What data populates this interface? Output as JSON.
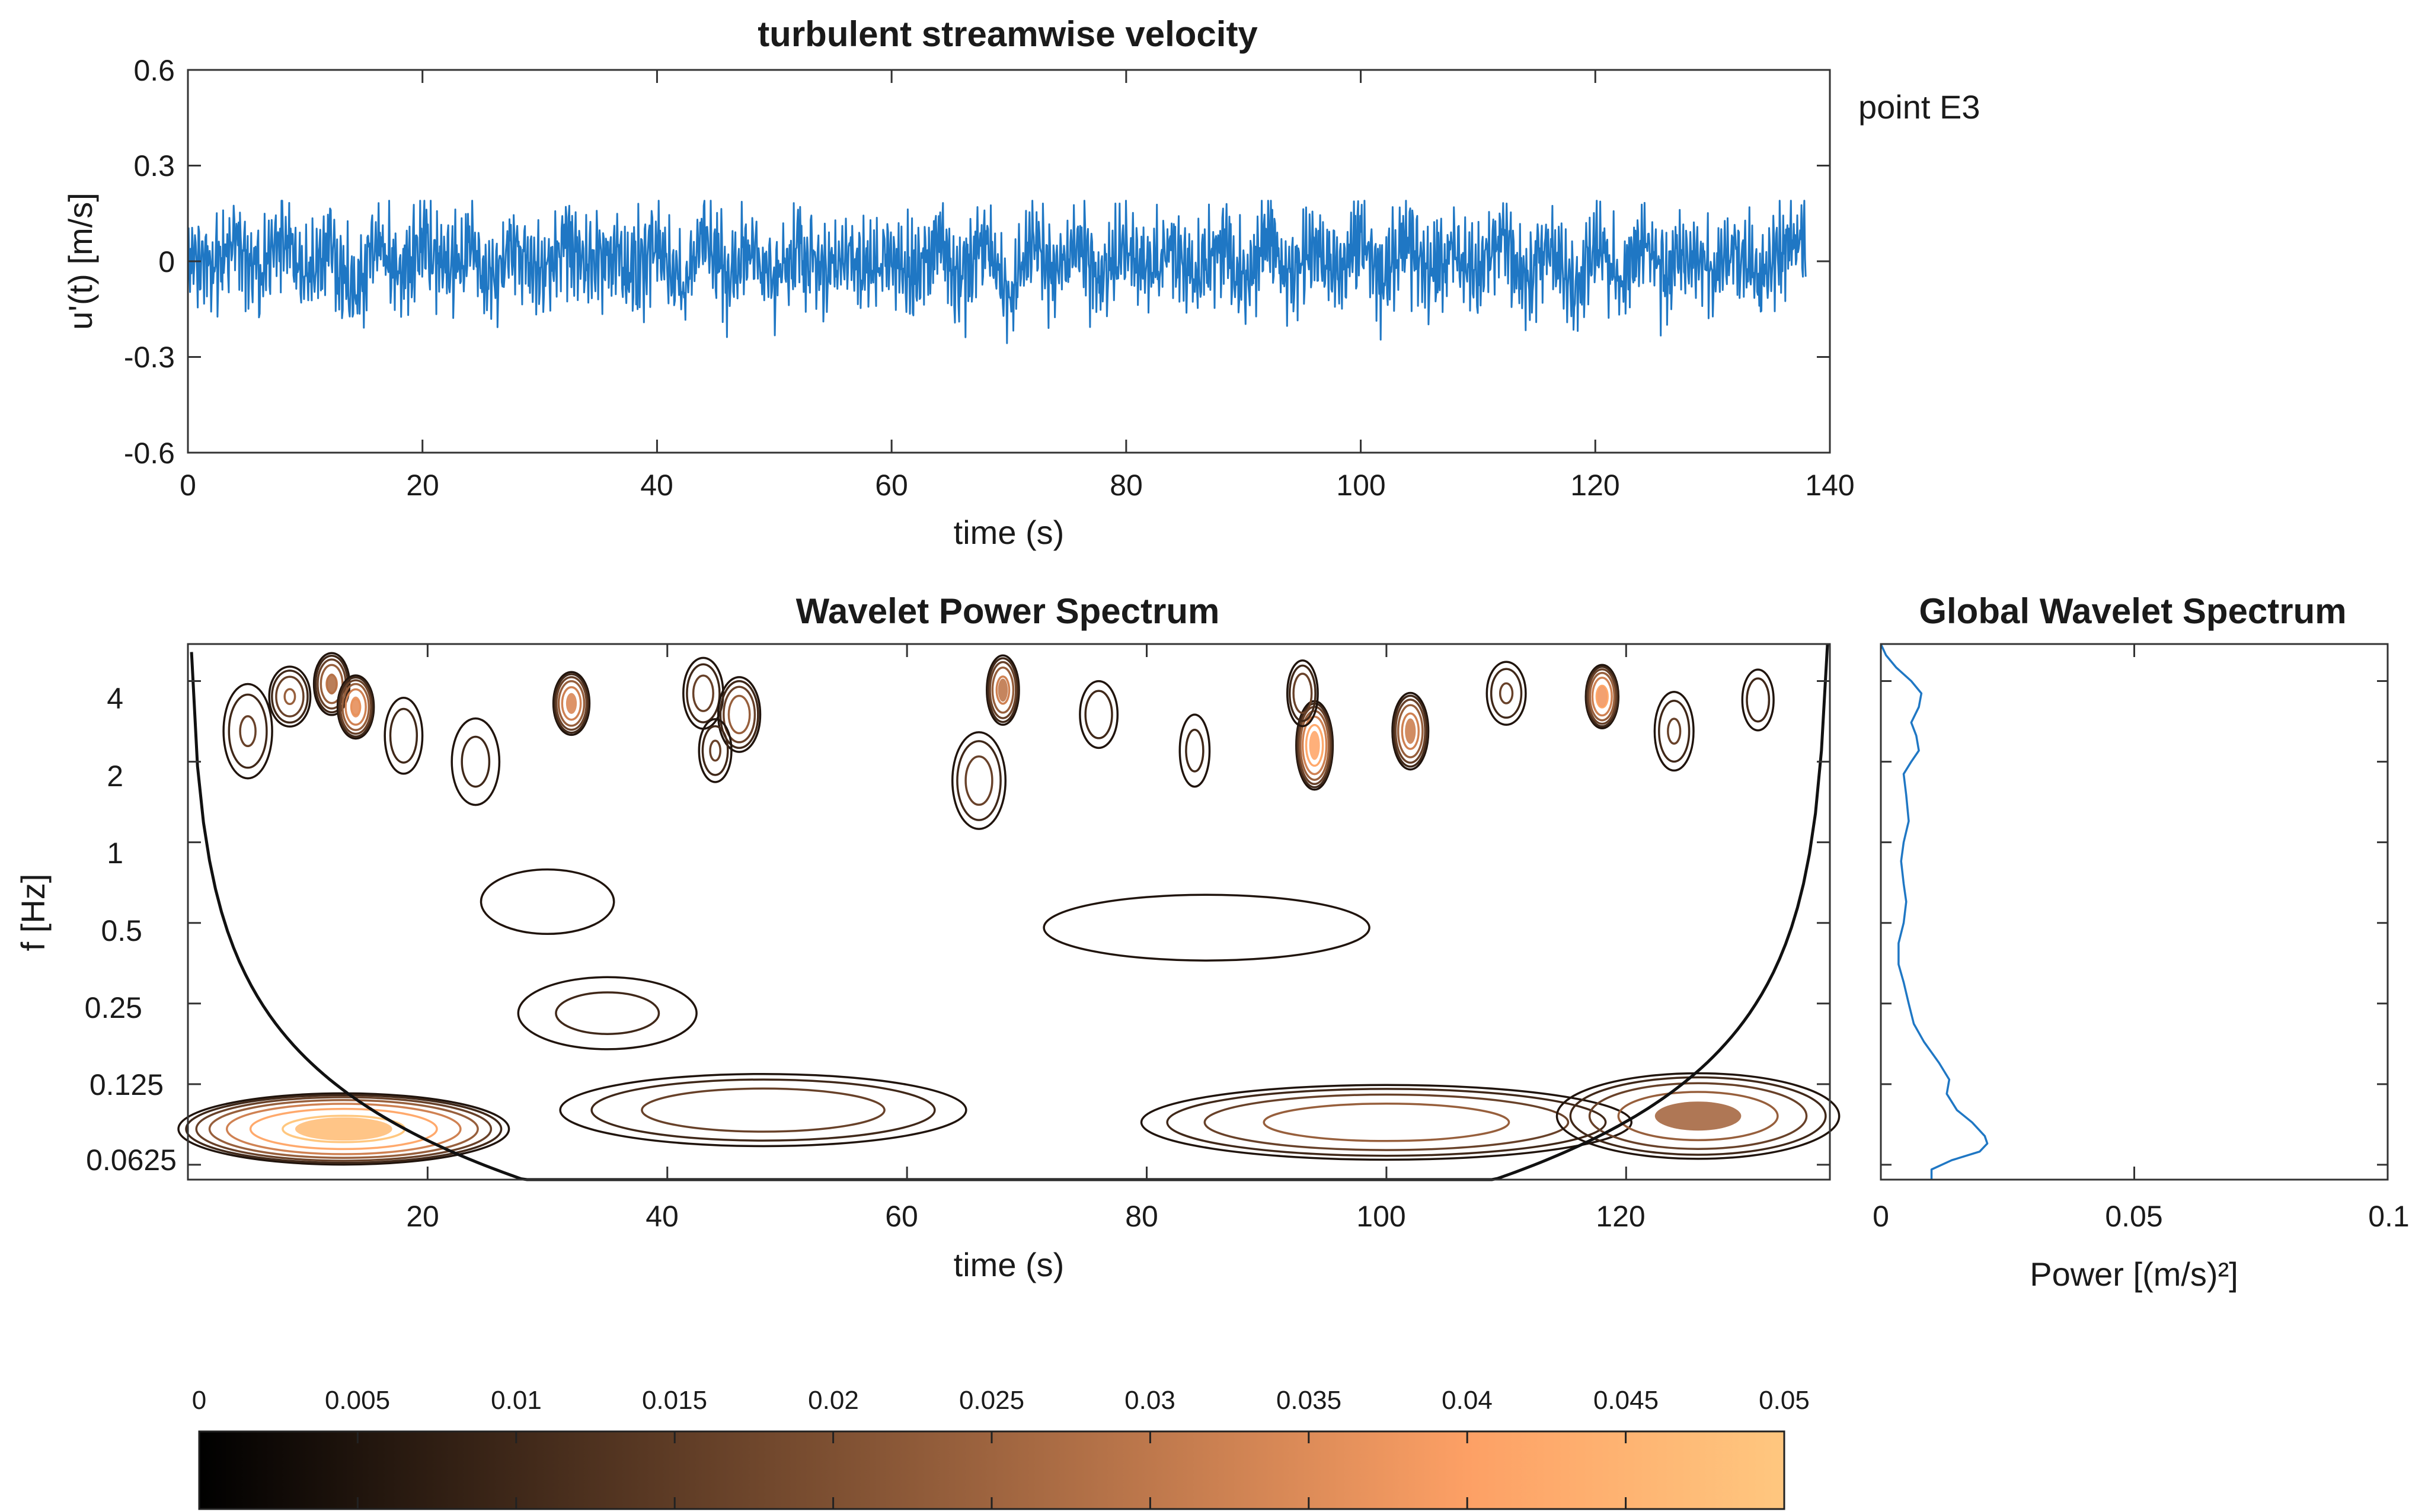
{
  "annotation": "point E3",
  "chart_data": [
    {
      "type": "line",
      "title": "turbulent streamwise velocity",
      "xlabel": "time (s)",
      "ylabel": "u'(t) [m/s]",
      "xlim": [
        0,
        140
      ],
      "ylim": [
        -0.6,
        0.6
      ],
      "xticks": [
        "0",
        "20",
        "40",
        "60",
        "80",
        "100",
        "120",
        "140"
      ],
      "yticks": [
        "0.6",
        "0.3",
        "0",
        "-0.3",
        "-0.6"
      ],
      "grid": false,
      "color": "#1f77c4",
      "series": [
        {
          "x": [
            0,
            2,
            4,
            6,
            8,
            10,
            12,
            14,
            16,
            18,
            20,
            22,
            24,
            26,
            28,
            30,
            32,
            34,
            36,
            38,
            40,
            42,
            44,
            46,
            48,
            50,
            52,
            54,
            56,
            58,
            60,
            62,
            64,
            66,
            68,
            70,
            72,
            74,
            76,
            78,
            80,
            82,
            84,
            86,
            88,
            90,
            92,
            94,
            96,
            98,
            100,
            102,
            104,
            106,
            108,
            110,
            112,
            114,
            116,
            118,
            120,
            122,
            124,
            126,
            128,
            130,
            132,
            134,
            136,
            138
          ],
          "y": [
            0.02,
            -0.05,
            0.12,
            -0.08,
            0.16,
            -0.12,
            0.1,
            -0.18,
            0.08,
            -0.1,
            0.12,
            -0.06,
            0.08,
            -0.1,
            0.06,
            -0.08,
            0.12,
            -0.04,
            0.05,
            -0.07,
            0.1,
            -0.14,
            0.12,
            -0.08,
            0.1,
            -0.12,
            0.08,
            -0.05,
            0.03,
            -0.04,
            0.0,
            -0.08,
            0.1,
            -0.12,
            0.14,
            -0.22,
            0.1,
            -0.06,
            0.08,
            -0.1,
            0.1,
            -0.08,
            0.07,
            -0.06,
            0.1,
            -0.12,
            0.12,
            -0.08,
            0.06,
            -0.08,
            0.1,
            -0.1,
            0.12,
            -0.08,
            0.08,
            -0.1,
            0.14,
            -0.12,
            0.1,
            -0.18,
            0.12,
            -0.1,
            0.1,
            -0.08,
            0.06,
            -0.05,
            0.08,
            -0.1,
            0.1,
            0.12
          ]
        }
      ]
    },
    {
      "type": "heatmap",
      "title": "Wavelet Power Spectrum",
      "xlabel": "time (s)",
      "ylabel": "f [Hz]",
      "xlim": [
        0,
        137
      ],
      "ylim": [
        0.055,
        5.5
      ],
      "yscale": "log",
      "xticks": [
        "20",
        "40",
        "60",
        "80",
        "100",
        "120"
      ],
      "yticks": [
        "4",
        "2",
        "1",
        "0.5",
        "0.25",
        "0.125",
        "0.0625"
      ],
      "style": "contour lines colored by power, black cone of influence",
      "colormap": "copper",
      "colorbar": {
        "range": [
          0,
          0.05
        ],
        "placement": "bottom",
        "ticks": [
          "0",
          "0.005",
          "0.01",
          "0.015",
          "0.02",
          "0.025",
          "0.03",
          "0.035",
          "0.04",
          "0.045",
          "0.05"
        ]
      },
      "blobs": [
        {
          "t": 5,
          "f": 2.6,
          "w": 1.5,
          "h": 0.3,
          "p": 0.014
        },
        {
          "t": 8.5,
          "f": 3.5,
          "w": 1.2,
          "h": 0.18,
          "p": 0.02
        },
        {
          "t": 12,
          "f": 3.9,
          "w": 1.0,
          "h": 0.18,
          "p": 0.028
        },
        {
          "t": 14,
          "f": 3.2,
          "w": 1.0,
          "h": 0.18,
          "p": 0.036
        },
        {
          "t": 18,
          "f": 2.5,
          "w": 1.2,
          "h": 0.25,
          "p": 0.012
        },
        {
          "t": 24,
          "f": 2.0,
          "w": 1.6,
          "h": 0.3,
          "p": 0.01
        },
        {
          "t": 32,
          "f": 3.3,
          "w": 1.0,
          "h": 0.18,
          "p": 0.034
        },
        {
          "t": 43,
          "f": 3.6,
          "w": 1.2,
          "h": 0.22,
          "p": 0.016
        },
        {
          "t": 46,
          "f": 3.0,
          "w": 1.2,
          "h": 0.22,
          "p": 0.024
        },
        {
          "t": 44,
          "f": 2.2,
          "w": 1.0,
          "h": 0.2,
          "p": 0.014
        },
        {
          "t": 66,
          "f": 1.7,
          "w": 1.6,
          "h": 0.3,
          "p": 0.016
        },
        {
          "t": 68,
          "f": 3.7,
          "w": 0.9,
          "h": 0.2,
          "p": 0.03
        },
        {
          "t": 76,
          "f": 3.0,
          "w": 1.2,
          "h": 0.22,
          "p": 0.012
        },
        {
          "t": 84,
          "f": 2.2,
          "w": 1.0,
          "h": 0.25,
          "p": 0.01
        },
        {
          "t": 94,
          "f": 2.3,
          "w": 1.0,
          "h": 0.25,
          "p": 0.042
        },
        {
          "t": 93,
          "f": 3.6,
          "w": 0.9,
          "h": 0.2,
          "p": 0.018
        },
        {
          "t": 102,
          "f": 2.6,
          "w": 1.0,
          "h": 0.22,
          "p": 0.032
        },
        {
          "t": 110,
          "f": 3.6,
          "w": 1.2,
          "h": 0.2,
          "p": 0.014
        },
        {
          "t": 118,
          "f": 3.5,
          "w": 0.9,
          "h": 0.18,
          "p": 0.038
        },
        {
          "t": 124,
          "f": 2.6,
          "w": 1.2,
          "h": 0.25,
          "p": 0.014
        },
        {
          "t": 131,
          "f": 3.4,
          "w": 1.0,
          "h": 0.2,
          "p": 0.012
        },
        {
          "t": 13,
          "f": 0.085,
          "w": 9.0,
          "h": 0.2,
          "p": 0.048
        },
        {
          "t": 48,
          "f": 0.1,
          "w": 12.0,
          "h": 0.22,
          "p": 0.018
        },
        {
          "t": 100,
          "f": 0.09,
          "w": 14.0,
          "h": 0.22,
          "p": 0.024
        },
        {
          "t": 126,
          "f": 0.095,
          "w": 8.0,
          "h": 0.25,
          "p": 0.026
        },
        {
          "t": 35,
          "f": 0.23,
          "w": 6.0,
          "h": 0.25,
          "p": 0.01
        },
        {
          "t": 85,
          "f": 0.48,
          "w": 12.0,
          "h": 0.25,
          "p": 0.008
        },
        {
          "t": 30,
          "f": 0.6,
          "w": 6.0,
          "h": 0.3,
          "p": 0.006
        }
      ]
    },
    {
      "type": "line",
      "title": "Global Wavelet Spectrum",
      "xlabel": "Power [(m/s)²]",
      "xlim": [
        0,
        0.1
      ],
      "xticks": [
        "0",
        "0.05",
        "0.1"
      ],
      "yscale": "log",
      "ylim": [
        0.055,
        5.5
      ],
      "color": "#1f77c4",
      "series": [
        {
          "f": [
            5.5,
            5.0,
            4.5,
            4.0,
            3.6,
            3.2,
            2.8,
            2.5,
            2.2,
            2.0,
            1.8,
            1.5,
            1.2,
            1.0,
            0.85,
            0.7,
            0.6,
            0.5,
            0.42,
            0.35,
            0.3,
            0.25,
            0.21,
            0.18,
            0.15,
            0.13,
            0.115,
            0.1,
            0.09,
            0.08,
            0.075,
            0.07,
            0.065,
            0.06,
            0.055
          ],
          "power": [
            0.0,
            0.001,
            0.003,
            0.006,
            0.008,
            0.0075,
            0.006,
            0.007,
            0.0075,
            0.006,
            0.0045,
            0.005,
            0.0055,
            0.0045,
            0.004,
            0.0045,
            0.005,
            0.0045,
            0.0035,
            0.0035,
            0.0045,
            0.0055,
            0.0065,
            0.0085,
            0.0115,
            0.0135,
            0.013,
            0.015,
            0.018,
            0.0205,
            0.021,
            0.0195,
            0.014,
            0.01,
            0.01
          ]
        }
      ]
    }
  ]
}
